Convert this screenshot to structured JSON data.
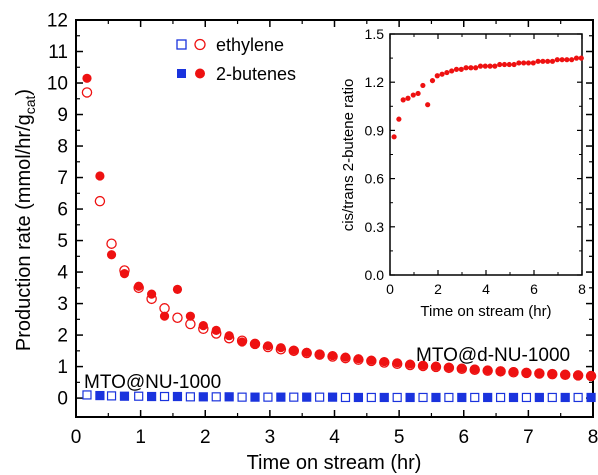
{
  "chart_data": [
    {
      "type": "scatter",
      "xlabel": "Time on stream (hr)",
      "ylabel_main": "Production rate (mmol/hr/g",
      "ylabel_sub": "cat",
      "ylabel_close": ")",
      "xlim": [
        0,
        8
      ],
      "ylim": [
        -0.6,
        12
      ],
      "xticks": [
        "0",
        "1",
        "2",
        "3",
        "4",
        "5",
        "6",
        "7",
        "8"
      ],
      "yticks": [
        "0",
        "1",
        "2",
        "3",
        "4",
        "5",
        "6",
        "7",
        "8",
        "9",
        "10",
        "11",
        "12"
      ],
      "legend": {
        "placement": "top-center",
        "rows": [
          {
            "label": "ethylene",
            "markers": [
              "open-square-blue",
              "open-circle-red"
            ]
          },
          {
            "label": "2-butenes",
            "markers": [
              "filled-square-blue",
              "filled-circle-red"
            ]
          }
        ]
      },
      "annotations": [
        "MTO@d-NU-1000",
        "MTO@NU-1000"
      ],
      "colors": {
        "red": "#ee1111",
        "blue": "#1a33dd"
      },
      "series": [
        {
          "name": "MTO@d-NU-1000 ethylene",
          "marker": "open-circle",
          "color": "#ee1111",
          "x": [
            0.17,
            0.37,
            0.55,
            0.75,
            0.97,
            1.17,
            1.37,
            1.57,
            1.77,
            1.97,
            2.17,
            2.37,
            2.57,
            2.77,
            2.97,
            3.17,
            3.37,
            3.57,
            3.77,
            3.97,
            4.17,
            4.37,
            4.57,
            4.77,
            4.97,
            5.17,
            5.37,
            5.57,
            5.77,
            5.97,
            6.17,
            6.37,
            6.57,
            6.77,
            6.97,
            7.17,
            7.37,
            7.57,
            7.77,
            7.97
          ],
          "y": [
            9.7,
            6.25,
            4.9,
            4.05,
            3.5,
            3.15,
            2.85,
            2.55,
            2.35,
            2.2,
            2.05,
            1.9,
            1.82,
            1.72,
            1.62,
            1.55,
            1.5,
            1.43,
            1.38,
            1.32,
            1.27,
            1.22,
            1.18,
            1.13,
            1.09,
            1.05,
            1.02,
            0.99,
            0.96,
            0.93,
            0.9,
            0.87,
            0.85,
            0.82,
            0.8,
            0.78,
            0.76,
            0.74,
            0.72,
            0.7
          ]
        },
        {
          "name": "MTO@d-NU-1000 2-butenes",
          "marker": "filled-circle",
          "color": "#ee1111",
          "x": [
            0.17,
            0.37,
            0.55,
            0.75,
            0.97,
            1.17,
            1.37,
            1.57,
            1.77,
            1.97,
            2.17,
            2.37,
            2.57,
            2.77,
            2.97,
            3.17,
            3.37,
            3.57,
            3.77,
            3.97,
            4.17,
            4.37,
            4.57,
            4.77,
            4.97,
            5.17,
            5.37,
            5.57,
            5.77,
            5.97,
            6.17,
            6.37,
            6.57,
            6.77,
            6.97,
            7.17,
            7.37,
            7.57,
            7.77,
            7.97
          ],
          "y": [
            10.15,
            7.05,
            4.55,
            3.95,
            3.55,
            3.3,
            2.6,
            3.45,
            2.6,
            2.3,
            2.15,
            1.98,
            1.78,
            1.72,
            1.66,
            1.6,
            1.52,
            1.45,
            1.4,
            1.35,
            1.3,
            1.25,
            1.2,
            1.16,
            1.12,
            1.08,
            1.04,
            1.01,
            0.98,
            0.95,
            0.92,
            0.89,
            0.86,
            0.84,
            0.81,
            0.79,
            0.77,
            0.75,
            0.73,
            0.71
          ]
        },
        {
          "name": "MTO@NU-1000 ethylene",
          "marker": "open-square",
          "color": "#1a33dd",
          "x": [
            0.17,
            0.37,
            0.55,
            0.75,
            0.97,
            1.17,
            1.37,
            1.57,
            1.77,
            1.97,
            2.17,
            2.37,
            2.57,
            2.77,
            2.97,
            3.17,
            3.37,
            3.57,
            3.77,
            3.97,
            4.17,
            4.37,
            4.57,
            4.77,
            4.97,
            5.17,
            5.37,
            5.57,
            5.77,
            5.97,
            6.17,
            6.37,
            6.57,
            6.77,
            6.97,
            7.17,
            7.37,
            7.57,
            7.77,
            7.97
          ],
          "y": [
            0.1,
            0.08,
            0.07,
            0.06,
            0.06,
            0.05,
            0.05,
            0.05,
            0.04,
            0.04,
            0.04,
            0.04,
            0.03,
            0.03,
            0.03,
            0.03,
            0.03,
            0.03,
            0.03,
            0.03,
            0.02,
            0.02,
            0.02,
            0.02,
            0.02,
            0.02,
            0.02,
            0.02,
            0.02,
            0.02,
            0.02,
            0.02,
            0.02,
            0.02,
            0.02,
            0.02,
            0.02,
            0.02,
            0.02,
            0.02
          ]
        },
        {
          "name": "MTO@NU-1000 2-butenes",
          "marker": "filled-square",
          "color": "#1a33dd",
          "x": [
            0.17,
            0.37,
            0.55,
            0.75,
            0.97,
            1.17,
            1.37,
            1.57,
            1.77,
            1.97,
            2.17,
            2.37,
            2.57,
            2.77,
            2.97,
            3.17,
            3.37,
            3.57,
            3.77,
            3.97,
            4.17,
            4.37,
            4.57,
            4.77,
            4.97,
            5.17,
            5.37,
            5.57,
            5.77,
            5.97,
            6.17,
            6.37,
            6.57,
            6.77,
            6.97,
            7.17,
            7.37,
            7.57,
            7.77,
            7.97
          ],
          "y": [
            0.1,
            0.08,
            0.07,
            0.06,
            0.06,
            0.05,
            0.05,
            0.05,
            0.04,
            0.04,
            0.04,
            0.04,
            0.03,
            0.03,
            0.03,
            0.03,
            0.03,
            0.03,
            0.03,
            0.03,
            0.02,
            0.02,
            0.02,
            0.02,
            0.02,
            0.02,
            0.02,
            0.02,
            0.02,
            0.02,
            0.02,
            0.02,
            0.02,
            0.02,
            0.02,
            0.02,
            0.02,
            0.02,
            0.02,
            0.02
          ]
        }
      ]
    },
    {
      "type": "scatter",
      "xlabel": "Time on stream (hr)",
      "ylabel": "cis/trans 2-butene ratio",
      "xlim": [
        0,
        8
      ],
      "ylim": [
        0,
        1.5
      ],
      "xticks": [
        "0",
        "2",
        "4",
        "6",
        "8"
      ],
      "yticks": [
        "0.0",
        "0.3",
        "0.6",
        "0.9",
        "1.2",
        "1.5"
      ],
      "series": [
        {
          "marker": "filled-circle",
          "color": "#ee1111",
          "x": [
            0.17,
            0.37,
            0.55,
            0.75,
            0.97,
            1.17,
            1.37,
            1.57,
            1.77,
            1.97,
            2.17,
            2.37,
            2.57,
            2.77,
            2.97,
            3.17,
            3.37,
            3.57,
            3.77,
            3.97,
            4.17,
            4.37,
            4.57,
            4.77,
            4.97,
            5.17,
            5.37,
            5.57,
            5.77,
            5.97,
            6.17,
            6.37,
            6.57,
            6.77,
            6.97,
            7.17,
            7.37,
            7.57,
            7.77,
            7.97
          ],
          "y": [
            0.86,
            0.97,
            1.09,
            1.1,
            1.12,
            1.13,
            1.18,
            1.06,
            1.21,
            1.24,
            1.25,
            1.26,
            1.27,
            1.28,
            1.28,
            1.29,
            1.29,
            1.29,
            1.3,
            1.3,
            1.3,
            1.3,
            1.31,
            1.31,
            1.31,
            1.31,
            1.32,
            1.32,
            1.32,
            1.32,
            1.33,
            1.33,
            1.33,
            1.33,
            1.34,
            1.34,
            1.34,
            1.34,
            1.35,
            1.35
          ]
        }
      ]
    }
  ]
}
